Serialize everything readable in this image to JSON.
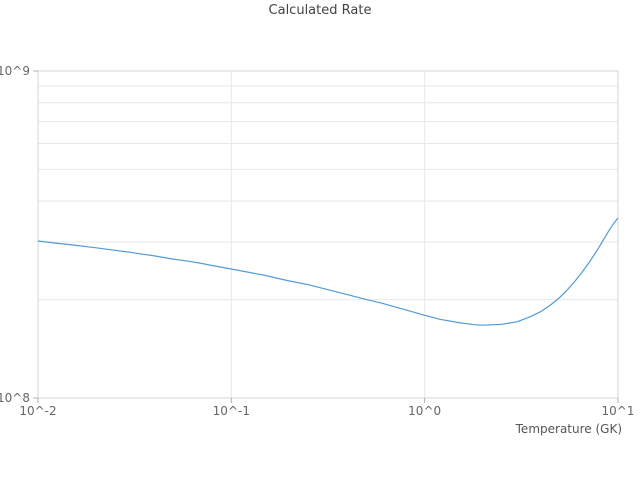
{
  "chart": {
    "title": "Calculated Rate",
    "xlabel": "Temperature (GK)"
  },
  "chart_data": {
    "type": "line",
    "title": "Calculated Rate",
    "xlabel": "Temperature (GK)",
    "ylabel": "",
    "x_scale": "log",
    "y_scale": "log",
    "xlim": [
      0.01,
      10
    ],
    "ylim": [
      100000000.0,
      1000000000.0
    ],
    "grid": true,
    "legend": "none",
    "colors": {
      "line": "#529bd8",
      "grid": "#e8e8e8",
      "frame": "#d4d4d4",
      "tick": "#b0b0b0",
      "tick_text": "#666666"
    },
    "x_ticks": [
      {
        "value": 0.01,
        "label": "10^-2"
      },
      {
        "value": 0.1,
        "label": "10^-1"
      },
      {
        "value": 1,
        "label": "10^0"
      },
      {
        "value": 10,
        "label": "10^1"
      }
    ],
    "y_ticks": [
      {
        "value": 100000000.0,
        "label": "10^8"
      },
      {
        "value": 1000000000.0,
        "label": "10^9"
      }
    ],
    "y_minor_grid": [
      200000000.0,
      300000000.0,
      400000000.0,
      500000000.0,
      600000000.0,
      700000000.0,
      800000000.0,
      900000000.0
    ],
    "x_major_grid": [
      0.01,
      0.1,
      1,
      10
    ],
    "series": [
      {
        "name": "calculated-rate",
        "x": [
          0.01,
          0.012,
          0.015,
          0.02,
          0.025,
          0.03,
          0.04,
          0.05,
          0.06,
          0.07,
          0.08,
          0.1,
          0.12,
          0.15,
          0.2,
          0.25,
          0.3,
          0.4,
          0.5,
          0.6,
          0.7,
          0.8,
          1.0,
          1.2,
          1.5,
          1.8,
          2.0,
          2.5,
          3.0,
          3.5,
          4.0,
          4.5,
          5.0,
          5.5,
          6.0,
          6.5,
          7.0,
          7.5,
          8.0,
          8.5,
          9.0,
          9.5,
          10.0
        ],
        "y": [
          302000000.0,
          298000000.0,
          294000000.0,
          288000000.0,
          283000000.0,
          279000000.0,
          272000000.0,
          266000000.0,
          262000000.0,
          258000000.0,
          254000000.0,
          248000000.0,
          243000000.0,
          237000000.0,
          228000000.0,
          222000000.0,
          216000000.0,
          207000000.0,
          200000000.0,
          195000000.0,
          190000000.0,
          186000000.0,
          179000000.0,
          174000000.0,
          170000000.0,
          167500000.0,
          167000000.0,
          168000000.0,
          171000000.0,
          177000000.0,
          184000000.0,
          193000000.0,
          203000000.0,
          215000000.0,
          228000000.0,
          242000000.0,
          257000000.0,
          273000000.0,
          290000000.0,
          308000000.0,
          326000000.0,
          342000000.0,
          355000000.0
        ]
      }
    ]
  }
}
